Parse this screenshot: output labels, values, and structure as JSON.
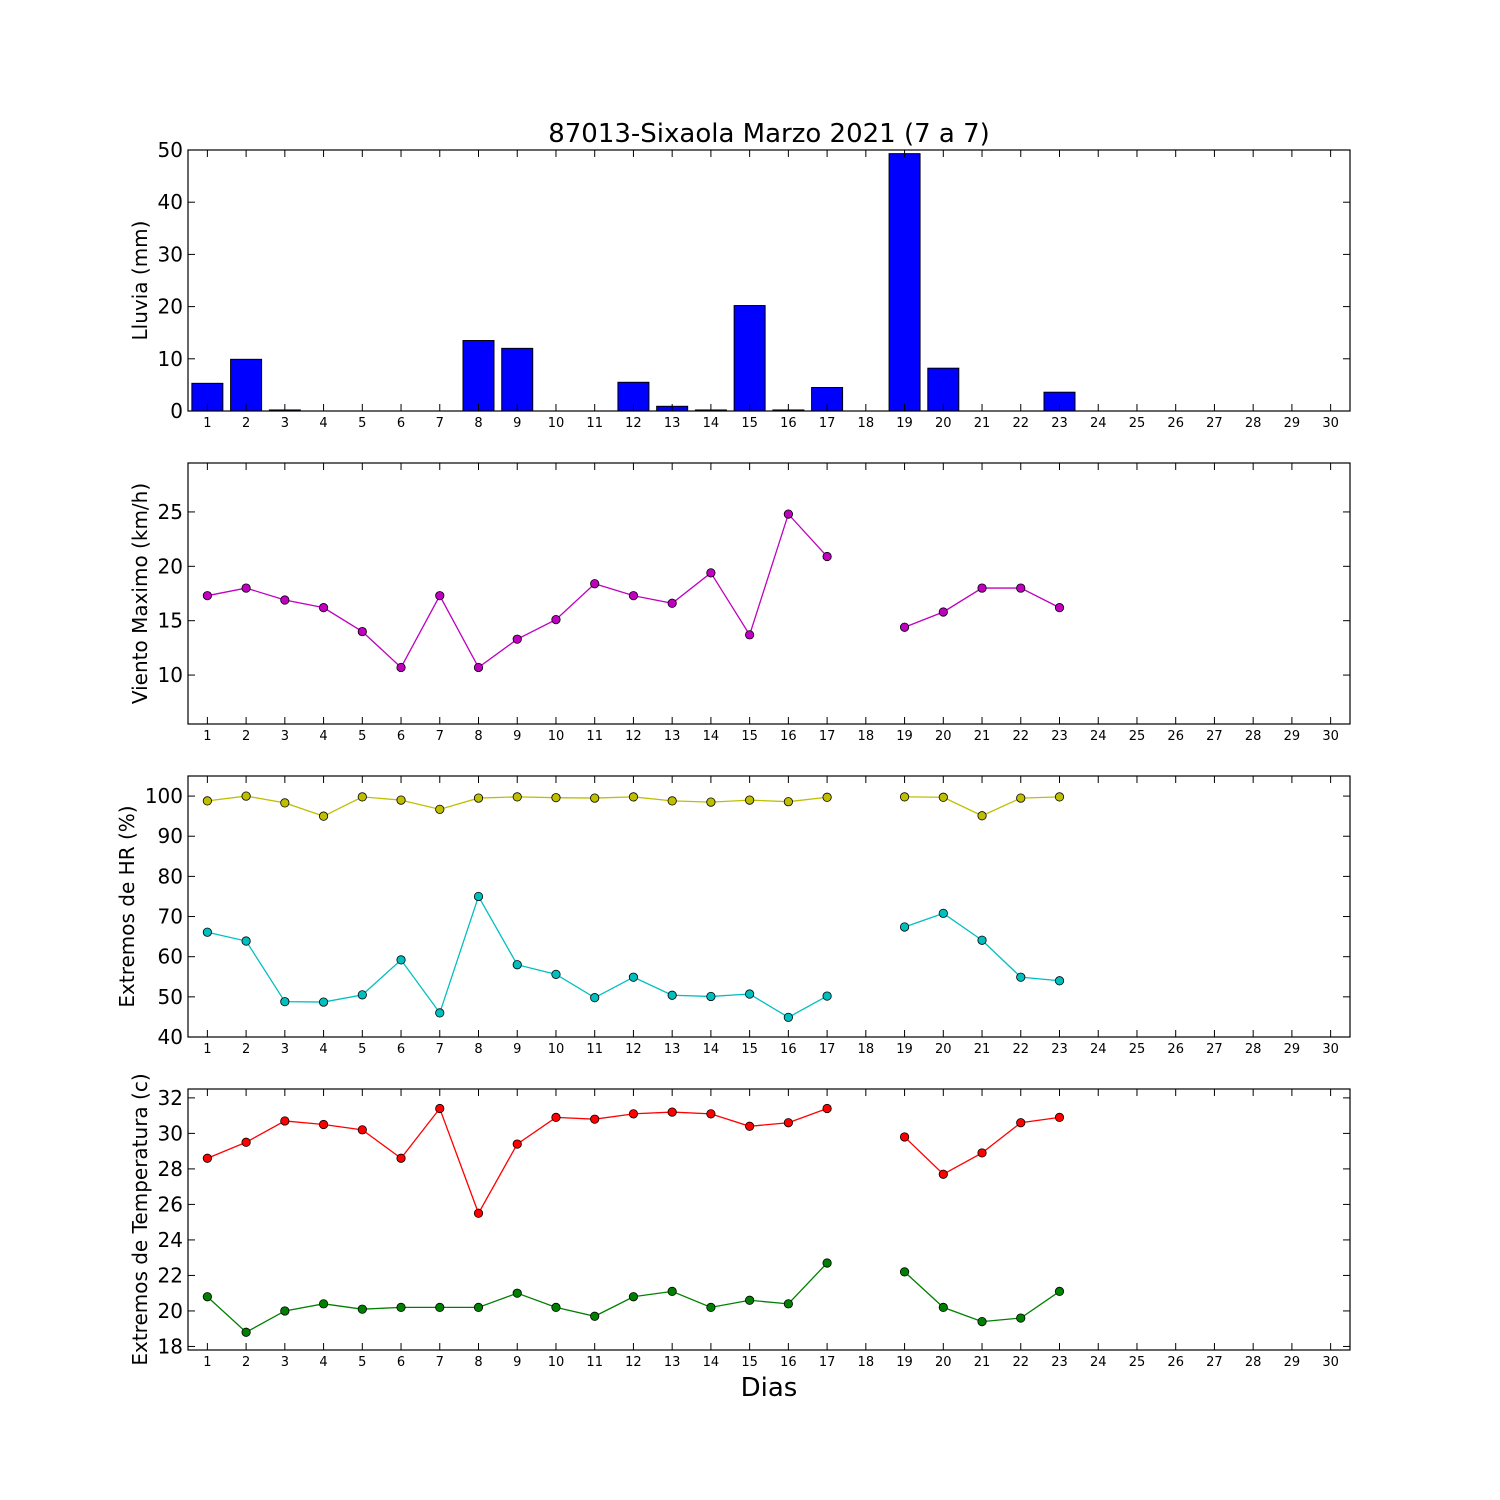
{
  "figure": {
    "title": "87013-Sixaola Marzo 2021  (7 a 7)",
    "xlabel": "Dias"
  },
  "colors": {
    "lluvia": "#0000ff",
    "viento": "#bf00bf",
    "hr_max": "#bfbf00",
    "hr_min": "#00bfbf",
    "temp_max": "#ff0000",
    "temp_min": "#008000"
  },
  "chart_data": [
    {
      "type": "bar",
      "ylabel": "Lluvia (mm)",
      "ylim": [
        0,
        50
      ],
      "yticks": [
        0,
        10,
        20,
        30,
        40,
        50
      ],
      "categories": [
        1,
        2,
        3,
        4,
        5,
        6,
        7,
        8,
        9,
        10,
        11,
        12,
        13,
        14,
        15,
        16,
        17,
        18,
        19,
        20,
        21,
        22,
        23,
        24,
        25,
        26,
        27,
        28,
        29,
        30
      ],
      "series": [
        {
          "values": [
            5.3,
            9.9,
            0.2,
            0,
            0,
            0,
            0,
            13.5,
            12.0,
            0,
            0,
            5.5,
            0.9,
            0.2,
            20.2,
            0.2,
            4.5,
            null,
            49.3,
            8.2,
            0,
            0,
            3.6,
            null,
            null,
            null,
            null,
            null,
            null,
            null
          ]
        }
      ]
    },
    {
      "type": "line",
      "ylabel": "Viento Maximo (km/h)",
      "ylim": [
        5.5,
        29.5
      ],
      "yticks": [
        10,
        15,
        20,
        25
      ],
      "x": [
        1,
        2,
        3,
        4,
        5,
        6,
        7,
        8,
        9,
        10,
        11,
        12,
        13,
        14,
        15,
        16,
        17,
        18,
        19,
        20,
        21,
        22,
        23,
        24,
        25,
        26,
        27,
        28,
        29,
        30
      ],
      "series": [
        {
          "values": [
            17.3,
            18.0,
            16.9,
            16.2,
            14.0,
            10.7,
            17.3,
            10.7,
            13.3,
            15.1,
            18.4,
            17.3,
            16.6,
            19.4,
            13.7,
            24.8,
            20.9,
            null,
            14.4,
            15.8,
            18.0,
            18.0,
            16.2,
            null,
            null,
            null,
            null,
            null,
            null,
            null
          ]
        }
      ]
    },
    {
      "type": "line",
      "ylabel": "Extremos de HR (%)",
      "ylim": [
        40,
        105
      ],
      "yticks": [
        40,
        50,
        60,
        70,
        80,
        90,
        100
      ],
      "x": [
        1,
        2,
        3,
        4,
        5,
        6,
        7,
        8,
        9,
        10,
        11,
        12,
        13,
        14,
        15,
        16,
        17,
        18,
        19,
        20,
        21,
        22,
        23,
        24,
        25,
        26,
        27,
        28,
        29,
        30
      ],
      "series": [
        {
          "values": [
            98.8,
            100.0,
            98.3,
            95.0,
            99.8,
            99.0,
            96.7,
            99.5,
            99.8,
            99.6,
            99.5,
            99.8,
            98.8,
            98.5,
            99.0,
            98.6,
            99.7,
            null,
            99.8,
            99.7,
            95.1,
            99.5,
            99.8,
            null,
            null,
            null,
            null,
            null,
            null,
            null
          ]
        },
        {
          "values": [
            66.1,
            63.9,
            48.8,
            48.7,
            50.5,
            59.2,
            46.0,
            75.0,
            58.0,
            55.6,
            49.8,
            54.9,
            50.4,
            50.1,
            50.7,
            44.9,
            50.2,
            null,
            67.4,
            70.8,
            64.1,
            54.9,
            54.0,
            null,
            null,
            null,
            null,
            null,
            null,
            null
          ]
        }
      ]
    },
    {
      "type": "line",
      "ylabel": "Extremos de Temperatura (c)",
      "ylim": [
        17.8,
        32.5
      ],
      "yticks": [
        18,
        20,
        22,
        24,
        26,
        28,
        30,
        32
      ],
      "x": [
        1,
        2,
        3,
        4,
        5,
        6,
        7,
        8,
        9,
        10,
        11,
        12,
        13,
        14,
        15,
        16,
        17,
        18,
        19,
        20,
        21,
        22,
        23,
        24,
        25,
        26,
        27,
        28,
        29,
        30
      ],
      "series": [
        {
          "values": [
            28.6,
            29.5,
            30.7,
            30.5,
            30.2,
            28.6,
            31.4,
            25.5,
            29.4,
            30.9,
            30.8,
            31.1,
            31.2,
            31.1,
            30.4,
            30.6,
            31.4,
            null,
            29.8,
            27.7,
            28.9,
            30.6,
            30.9,
            null,
            null,
            null,
            null,
            null,
            null,
            null
          ]
        },
        {
          "values": [
            20.8,
            18.8,
            20.0,
            20.4,
            20.1,
            20.2,
            20.2,
            20.2,
            21.0,
            20.2,
            19.7,
            20.8,
            21.1,
            20.2,
            20.6,
            20.4,
            22.7,
            null,
            22.2,
            20.2,
            19.4,
            19.6,
            21.1,
            null,
            null,
            null,
            null,
            null,
            null,
            null
          ]
        }
      ]
    }
  ]
}
